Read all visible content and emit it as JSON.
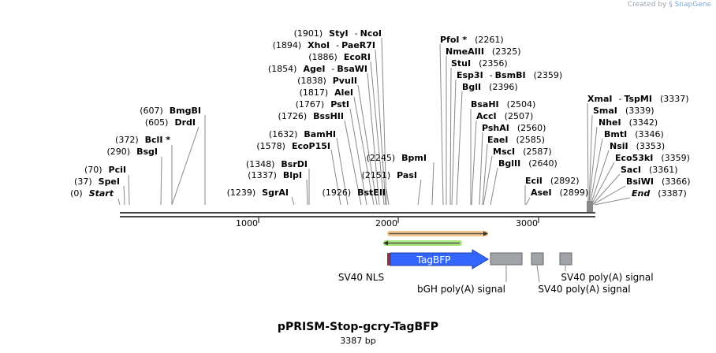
{
  "credit": {
    "prefix": "Created by",
    "brand": "SnapGene"
  },
  "plasmid": {
    "name": "pPRISM-Stop-gcry-TagBFP",
    "length_label": "3387 bp",
    "length": 3387
  },
  "ruler": {
    "ticks": [
      "1000",
      "2000",
      "3000"
    ]
  },
  "sites": [
    {
      "pos": "(1901)",
      "name": "StyI",
      "sep": "-",
      "name2": "NcoI"
    },
    {
      "pos": "(1894)",
      "name": "XhoI",
      "sep": "-",
      "name2": "PaeR7I"
    },
    {
      "pos": "(1886)",
      "name": "EcoRI"
    },
    {
      "pos": "(1854)",
      "name": "AgeI",
      "sep": "-",
      "name2": "BsaWI"
    },
    {
      "pos": "(1838)",
      "name": "PvuII"
    },
    {
      "pos": "(1817)",
      "name": "AleI"
    },
    {
      "pos": "(1767)",
      "name": "PstI"
    },
    {
      "pos": "(1726)",
      "name": "BssHII"
    },
    {
      "pos": "(1632)",
      "name": "BamHI"
    },
    {
      "pos": "(1578)",
      "name": "EcoP15I"
    },
    {
      "pos": "(1348)",
      "name": "BsrDI"
    },
    {
      "pos": "(1337)",
      "name": "BlpI"
    },
    {
      "pos": "(1239)",
      "name": "SgrAI"
    },
    {
      "pos": "(1926)",
      "name": "BstEII"
    },
    {
      "pos": "(607)",
      "name": "BmgBI"
    },
    {
      "pos": "(605)",
      "name": "DrdI"
    },
    {
      "pos": "(372)",
      "name": "BclI *"
    },
    {
      "pos": "(290)",
      "name": "BsgI"
    },
    {
      "pos": "(70)",
      "name": "PciI"
    },
    {
      "pos": "(37)",
      "name": "SpeI"
    },
    {
      "pos": "(0)",
      "name": "Start"
    },
    {
      "pos": "(2245)",
      "name": "BpmI"
    },
    {
      "pos": "(2151)",
      "name": "PasI"
    },
    {
      "name": "PfoI *",
      "pos": "(2261)"
    },
    {
      "name": "NmeAIII",
      "pos": "(2325)"
    },
    {
      "name": "StuI",
      "pos": "(2356)"
    },
    {
      "name": "Esp3I",
      "sep": "-",
      "name2": "BsmBI",
      "pos": "(2359)"
    },
    {
      "name": "BglI",
      "pos": "(2396)"
    },
    {
      "name": "BsaHI",
      "pos": "(2504)"
    },
    {
      "name": "AccI",
      "pos": "(2507)"
    },
    {
      "name": "PshAI",
      "pos": "(2560)"
    },
    {
      "name": "EaeI",
      "pos": "(2585)"
    },
    {
      "name": "MscI",
      "pos": "(2587)"
    },
    {
      "name": "BglII",
      "pos": "(2640)"
    },
    {
      "name": "EciI",
      "pos": "(2892)"
    },
    {
      "name": "AseI",
      "pos": "(2899)"
    },
    {
      "name": "XmaI",
      "sep": "-",
      "name2": "TspMI",
      "pos": "(3337)"
    },
    {
      "name": "SmaI",
      "pos": "(3339)"
    },
    {
      "name": "NheI",
      "pos": "(3342)"
    },
    {
      "name": "BmtI",
      "pos": "(3346)"
    },
    {
      "name": "NsiI",
      "pos": "(3353)"
    },
    {
      "name": "Eco53kI",
      "pos": "(3359)"
    },
    {
      "name": "SacI",
      "pos": "(3361)"
    },
    {
      "name": "BsiWI",
      "pos": "(3366)"
    },
    {
      "name": "End",
      "pos": "(3387)"
    }
  ],
  "features": [
    {
      "name": "SV40 NLS",
      "start": 1926,
      "end": 1945,
      "color": "#993333"
    },
    {
      "name": "TagBFP",
      "start": 1945,
      "end": 2680,
      "color": "#3366ff"
    },
    {
      "name": "bGH poly(A) signal",
      "start": 2705,
      "end": 2930,
      "color": "#a0a4a8"
    },
    {
      "name": "SV40 poly(A) signal",
      "start": 2998,
      "end": 3085,
      "color": "#a0a4a8"
    },
    {
      "name": "SV40 poly(A) signal",
      "start": 3200,
      "end": 3287,
      "color": "#a0a4a8"
    }
  ],
  "arrows": [
    {
      "start": 1945,
      "end": 2680,
      "direction": "forward",
      "color": "#f0b070"
    },
    {
      "start": 1945,
      "end": 2490,
      "direction": "reverse",
      "color": "#88dd55"
    }
  ],
  "colors": {
    "backbone": "#444444",
    "leader": "#888888",
    "text": "#000000"
  }
}
